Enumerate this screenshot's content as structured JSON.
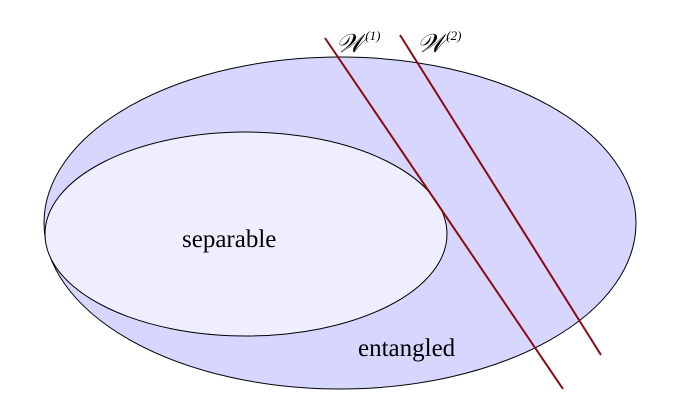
{
  "regions": {
    "entangled": {
      "label": "entangled",
      "fill": "#d6d6ff",
      "stroke": "#000000"
    },
    "separable": {
      "label": "separable",
      "fill": "#eeeeff",
      "stroke": "#000000"
    }
  },
  "witnesses": [
    {
      "symbol": "𝒲",
      "superscript": "(1)",
      "color": "#8b0a14"
    },
    {
      "symbol": "𝒲",
      "superscript": "(2)",
      "color": "#8b0a14"
    }
  ]
}
